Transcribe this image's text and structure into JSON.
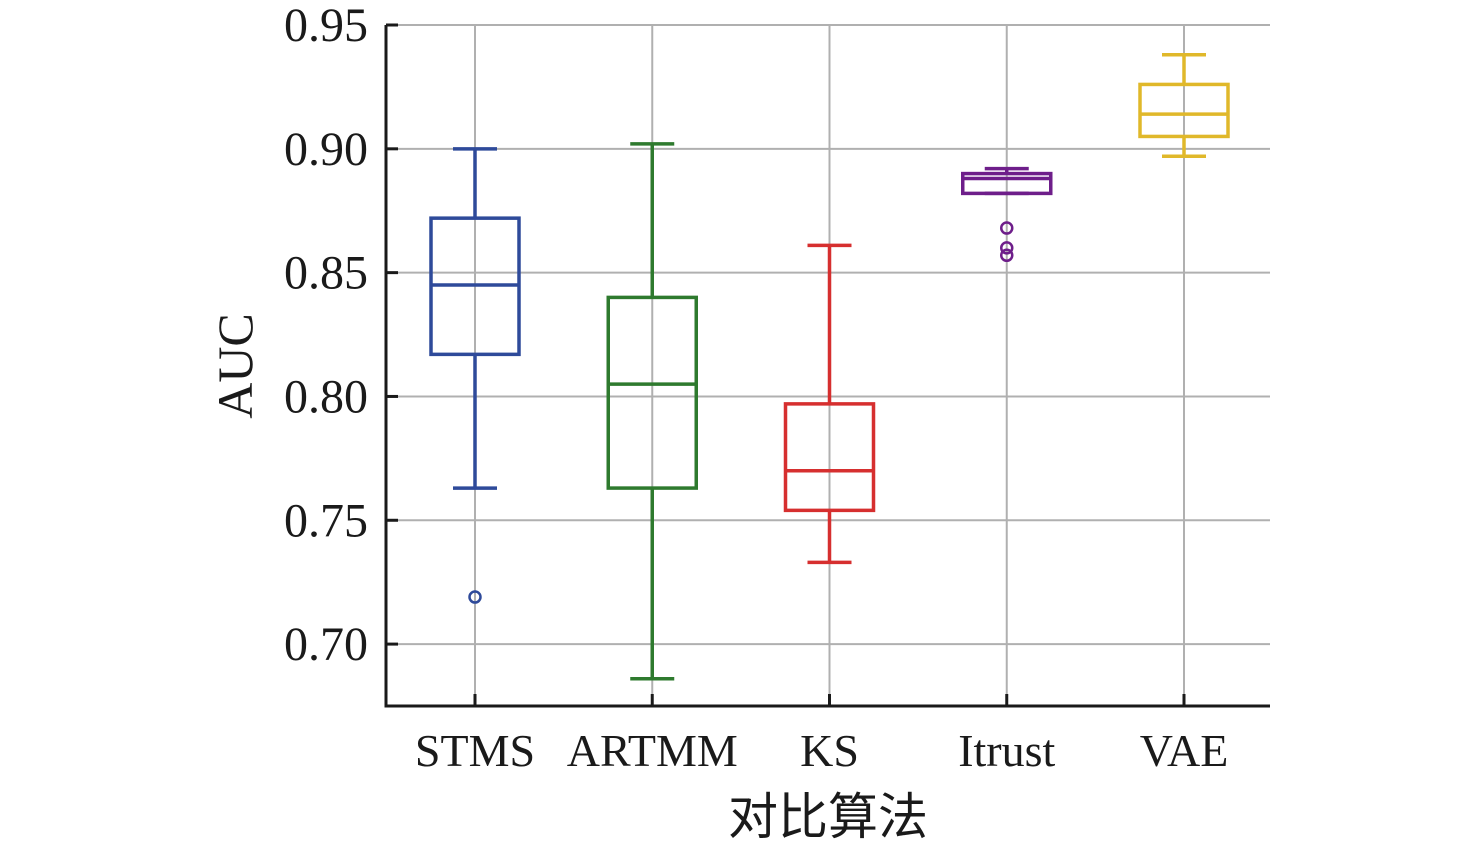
{
  "chart_data": {
    "type": "box",
    "xlabel": "对比算法",
    "ylabel": "AUC",
    "ylim": [
      0.675,
      0.95
    ],
    "yticks": [
      0.7,
      0.75,
      0.8,
      0.85,
      0.9,
      0.95
    ],
    "ytick_labels": [
      "0.70",
      "0.75",
      "0.80",
      "0.85",
      "0.90",
      "0.95"
    ],
    "grid": true,
    "categories": [
      "STMS",
      "ARTMM",
      "KS",
      "Itrust",
      "VAE"
    ],
    "series": [
      {
        "name": "STMS",
        "color": "#2e4a9a",
        "whisker_low": 0.763,
        "q1": 0.817,
        "median": 0.845,
        "q3": 0.872,
        "whisker_high": 0.9,
        "outliers": [
          0.719
        ]
      },
      {
        "name": "ARTMM",
        "color": "#2e7a2e",
        "whisker_low": 0.686,
        "q1": 0.763,
        "median": 0.805,
        "q3": 0.84,
        "whisker_high": 0.902,
        "outliers": []
      },
      {
        "name": "KS",
        "color": "#d62f2f",
        "whisker_low": 0.733,
        "q1": 0.754,
        "median": 0.77,
        "q3": 0.797,
        "whisker_high": 0.861,
        "outliers": []
      },
      {
        "name": "Itrust",
        "color": "#6e1e8a",
        "whisker_low": 0.882,
        "q1": 0.882,
        "median": 0.888,
        "q3": 0.89,
        "whisker_high": 0.892,
        "outliers": [
          0.868,
          0.86,
          0.857
        ]
      },
      {
        "name": "VAE",
        "color": "#e0b82a",
        "whisker_low": 0.897,
        "q1": 0.905,
        "median": 0.914,
        "q3": 0.926,
        "whisker_high": 0.938,
        "outliers": []
      }
    ]
  }
}
